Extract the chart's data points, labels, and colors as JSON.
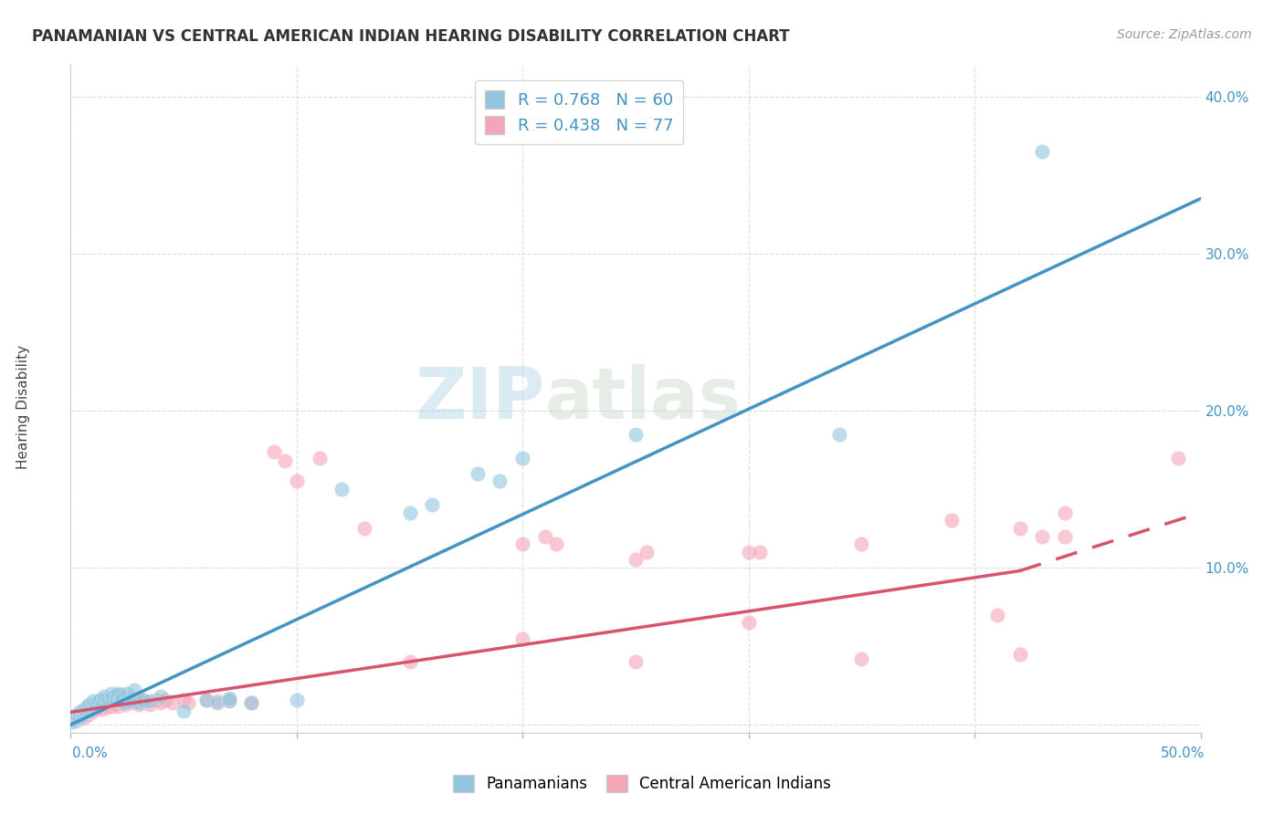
{
  "title": "PANAMANIAN VS CENTRAL AMERICAN INDIAN HEARING DISABILITY CORRELATION CHART",
  "source": "Source: ZipAtlas.com",
  "ylabel": "Hearing Disability",
  "legend_blue_r": "R = 0.768",
  "legend_blue_n": "N = 60",
  "legend_pink_r": "R = 0.438",
  "legend_pink_n": "N = 77",
  "blue_color": "#92c5de",
  "pink_color": "#f4a6b8",
  "blue_line_color": "#4393c3",
  "pink_line_color": "#d6546e",
  "watermark_zip": "ZIP",
  "watermark_atlas": "atlas",
  "xlim": [
    0.0,
    0.5
  ],
  "ylim": [
    -0.005,
    0.42
  ],
  "blue_points": [
    [
      0.001,
      0.002
    ],
    [
      0.002,
      0.003
    ],
    [
      0.002,
      0.005
    ],
    [
      0.003,
      0.004
    ],
    [
      0.003,
      0.006
    ],
    [
      0.004,
      0.005
    ],
    [
      0.004,
      0.008
    ],
    [
      0.005,
      0.006
    ],
    [
      0.005,
      0.009
    ],
    [
      0.006,
      0.007
    ],
    [
      0.006,
      0.01
    ],
    [
      0.007,
      0.008
    ],
    [
      0.007,
      0.011
    ],
    [
      0.008,
      0.009
    ],
    [
      0.008,
      0.013
    ],
    [
      0.009,
      0.01
    ],
    [
      0.01,
      0.012
    ],
    [
      0.01,
      0.015
    ],
    [
      0.011,
      0.013
    ],
    [
      0.012,
      0.015
    ],
    [
      0.013,
      0.016
    ],
    [
      0.014,
      0.014
    ],
    [
      0.015,
      0.016
    ],
    [
      0.015,
      0.018
    ],
    [
      0.016,
      0.017
    ],
    [
      0.017,
      0.015
    ],
    [
      0.018,
      0.017
    ],
    [
      0.018,
      0.02
    ],
    [
      0.019,
      0.018
    ],
    [
      0.02,
      0.016
    ],
    [
      0.02,
      0.019
    ],
    [
      0.021,
      0.02
    ],
    [
      0.022,
      0.016
    ],
    [
      0.022,
      0.019
    ],
    [
      0.023,
      0.017
    ],
    [
      0.024,
      0.014
    ],
    [
      0.025,
      0.02
    ],
    [
      0.026,
      0.015
    ],
    [
      0.027,
      0.016
    ],
    [
      0.028,
      0.022
    ],
    [
      0.03,
      0.014
    ],
    [
      0.032,
      0.016
    ],
    [
      0.035,
      0.015
    ],
    [
      0.04,
      0.018
    ],
    [
      0.05,
      0.009
    ],
    [
      0.06,
      0.016
    ],
    [
      0.065,
      0.014
    ],
    [
      0.07,
      0.015
    ],
    [
      0.07,
      0.017
    ],
    [
      0.08,
      0.014
    ],
    [
      0.1,
      0.016
    ],
    [
      0.12,
      0.15
    ],
    [
      0.15,
      0.135
    ],
    [
      0.16,
      0.14
    ],
    [
      0.18,
      0.16
    ],
    [
      0.19,
      0.155
    ],
    [
      0.2,
      0.17
    ],
    [
      0.25,
      0.185
    ],
    [
      0.34,
      0.185
    ],
    [
      0.43,
      0.365
    ]
  ],
  "pink_points": [
    [
      0.001,
      0.003
    ],
    [
      0.002,
      0.004
    ],
    [
      0.002,
      0.006
    ],
    [
      0.003,
      0.003
    ],
    [
      0.004,
      0.005
    ],
    [
      0.004,
      0.007
    ],
    [
      0.005,
      0.004
    ],
    [
      0.005,
      0.007
    ],
    [
      0.006,
      0.005
    ],
    [
      0.006,
      0.008
    ],
    [
      0.007,
      0.006
    ],
    [
      0.007,
      0.009
    ],
    [
      0.008,
      0.007
    ],
    [
      0.008,
      0.01
    ],
    [
      0.009,
      0.008
    ],
    [
      0.01,
      0.009
    ],
    [
      0.01,
      0.012
    ],
    [
      0.011,
      0.01
    ],
    [
      0.012,
      0.011
    ],
    [
      0.013,
      0.012
    ],
    [
      0.014,
      0.01
    ],
    [
      0.015,
      0.013
    ],
    [
      0.015,
      0.016
    ],
    [
      0.016,
      0.011
    ],
    [
      0.017,
      0.014
    ],
    [
      0.018,
      0.012
    ],
    [
      0.018,
      0.016
    ],
    [
      0.019,
      0.013
    ],
    [
      0.02,
      0.015
    ],
    [
      0.021,
      0.012
    ],
    [
      0.022,
      0.014
    ],
    [
      0.023,
      0.016
    ],
    [
      0.024,
      0.013
    ],
    [
      0.025,
      0.015
    ],
    [
      0.026,
      0.017
    ],
    [
      0.027,
      0.014
    ],
    [
      0.028,
      0.016
    ],
    [
      0.03,
      0.013
    ],
    [
      0.03,
      0.017
    ],
    [
      0.032,
      0.015
    ],
    [
      0.035,
      0.013
    ],
    [
      0.038,
      0.016
    ],
    [
      0.04,
      0.014
    ],
    [
      0.042,
      0.016
    ],
    [
      0.045,
      0.014
    ],
    [
      0.05,
      0.016
    ],
    [
      0.052,
      0.014
    ],
    [
      0.06,
      0.016
    ],
    [
      0.065,
      0.015
    ],
    [
      0.07,
      0.016
    ],
    [
      0.08,
      0.014
    ],
    [
      0.09,
      0.174
    ],
    [
      0.095,
      0.168
    ],
    [
      0.1,
      0.155
    ],
    [
      0.11,
      0.17
    ],
    [
      0.13,
      0.125
    ],
    [
      0.2,
      0.115
    ],
    [
      0.21,
      0.12
    ],
    [
      0.215,
      0.115
    ],
    [
      0.25,
      0.105
    ],
    [
      0.255,
      0.11
    ],
    [
      0.3,
      0.11
    ],
    [
      0.305,
      0.11
    ],
    [
      0.35,
      0.115
    ],
    [
      0.39,
      0.13
    ],
    [
      0.41,
      0.07
    ],
    [
      0.42,
      0.125
    ],
    [
      0.43,
      0.12
    ],
    [
      0.44,
      0.12
    ],
    [
      0.49,
      0.17
    ],
    [
      0.35,
      0.042
    ],
    [
      0.42,
      0.045
    ],
    [
      0.25,
      0.04
    ],
    [
      0.15,
      0.04
    ],
    [
      0.3,
      0.065
    ],
    [
      0.2,
      0.055
    ],
    [
      0.44,
      0.135
    ]
  ],
  "blue_line": [
    [
      0.0,
      0.0
    ],
    [
      0.5,
      0.335
    ]
  ],
  "pink_line_solid": [
    [
      0.0,
      0.008
    ],
    [
      0.42,
      0.098
    ]
  ],
  "pink_line_dash": [
    [
      0.42,
      0.098
    ],
    [
      0.5,
      0.135
    ]
  ],
  "background_color": "#ffffff",
  "grid_color": "#d8d8d8"
}
